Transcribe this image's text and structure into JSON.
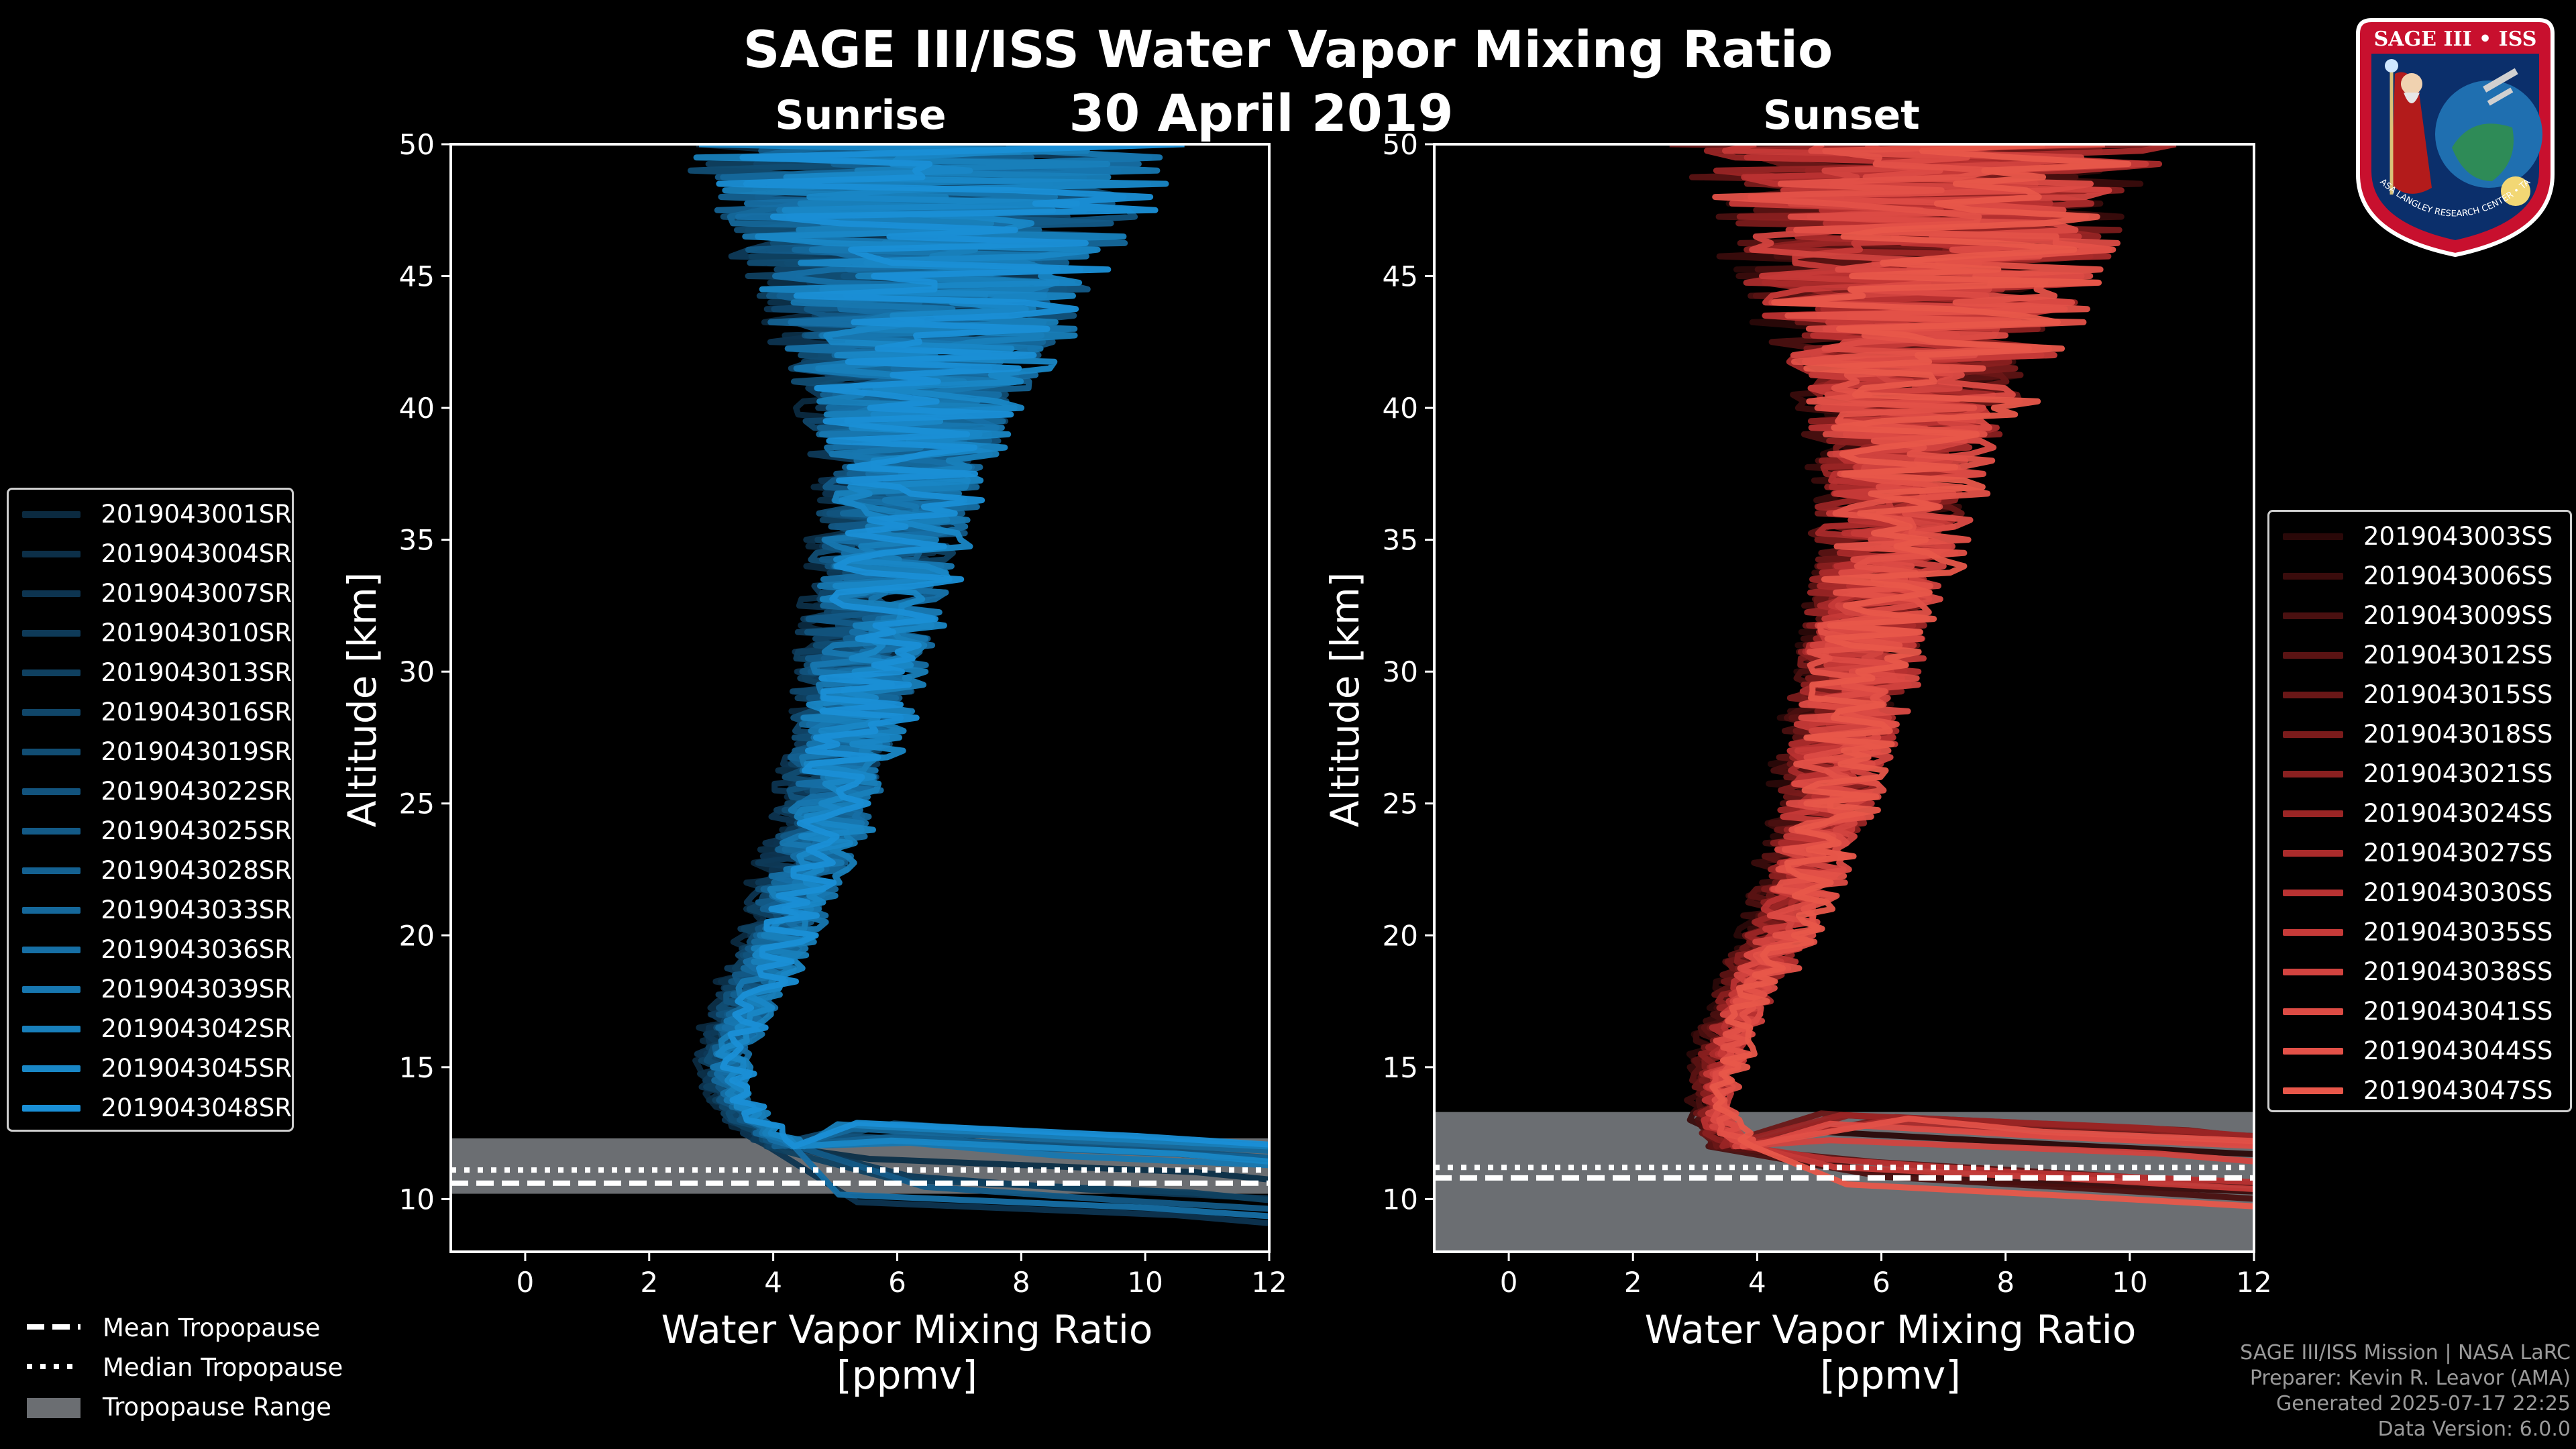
{
  "title": "SAGE III/ISS Water Vapor Mixing Ratio",
  "date": "30 April 2019",
  "colors": {
    "sunrise": "#1a8fd6",
    "sunset": "#e8574a",
    "tropopause_range": "#6b6e72"
  },
  "chart_data": [
    {
      "type": "line",
      "panel_title": "Sunrise",
      "xlabel_line1": "Water Vapor Mixing Ratio",
      "xlabel_line2": "[ppmv]",
      "ylabel": "Altitude [km]",
      "xlim": [
        -1.2,
        12
      ],
      "ylim": [
        8,
        50
      ],
      "xticks": [
        "0",
        "2",
        "4",
        "6",
        "8",
        "10",
        "12"
      ],
      "xtick_values": [
        0,
        2,
        4,
        6,
        8,
        10,
        12
      ],
      "yticks": [
        "10",
        "15",
        "20",
        "25",
        "30",
        "35",
        "40",
        "45",
        "50"
      ],
      "ytick_values": [
        10,
        15,
        20,
        25,
        30,
        35,
        40,
        45,
        50
      ],
      "series_names": [
        "2019043001SR",
        "2019043004SR",
        "2019043007SR",
        "2019043010SR",
        "2019043013SR",
        "2019043016SR",
        "2019043019SR",
        "2019043022SR",
        "2019043025SR",
        "2019043028SR",
        "2019043033SR",
        "2019043036SR",
        "2019043039SR",
        "2019043042SR",
        "2019043045SR",
        "2019043048SR"
      ],
      "series_colors": [
        "#0b2a40",
        "#0c2f48",
        "#0d3450",
        "#0e3a58",
        "#0f4060",
        "#104669",
        "#114d73",
        "#12537d",
        "#135a87",
        "#146191",
        "#15689b",
        "#166fa5",
        "#1777b0",
        "#187fbb",
        "#1987c6",
        "#1a8fd6"
      ],
      "mean_profile": {
        "alt": [
          12,
          13,
          14,
          15,
          16,
          17,
          18,
          19,
          20,
          21,
          22,
          23,
          24,
          25,
          26,
          27,
          28,
          29,
          30,
          31,
          32,
          33,
          34,
          35,
          36,
          37,
          38,
          39,
          40,
          41,
          42,
          43,
          44,
          45,
          46,
          47,
          48,
          49,
          50
        ],
        "x": [
          4.2,
          3.6,
          3.3,
          3.2,
          3.3,
          3.5,
          3.7,
          3.9,
          4.1,
          4.3,
          4.4,
          4.6,
          4.8,
          4.9,
          5.0,
          5.1,
          5.2,
          5.3,
          5.4,
          5.5,
          5.6,
          5.7,
          5.8,
          5.9,
          6.0,
          6.0,
          6.1,
          6.2,
          6.2,
          6.3,
          6.3,
          6.4,
          6.4,
          6.4,
          6.5,
          6.5,
          6.5,
          6.5,
          6.5
        ]
      },
      "mean_tropopause_km": 10.6,
      "median_tropopause_km": 11.1,
      "tropopause_range_km": [
        10.2,
        12.3
      ]
    },
    {
      "type": "line",
      "panel_title": "Sunset",
      "xlabel_line1": "Water Vapor Mixing Ratio",
      "xlabel_line2": "[ppmv]",
      "ylabel": "Altitude [km]",
      "xlim": [
        -1.2,
        12
      ],
      "ylim": [
        8,
        50
      ],
      "xticks": [
        "0",
        "2",
        "4",
        "6",
        "8",
        "10",
        "12"
      ],
      "xtick_values": [
        0,
        2,
        4,
        6,
        8,
        10,
        12
      ],
      "yticks": [
        "10",
        "15",
        "20",
        "25",
        "30",
        "35",
        "40",
        "45",
        "50"
      ],
      "ytick_values": [
        10,
        15,
        20,
        25,
        30,
        35,
        40,
        45,
        50
      ],
      "series_names": [
        "2019043003SS",
        "2019043006SS",
        "2019043009SS",
        "2019043012SS",
        "2019043015SS",
        "2019043018SS",
        "2019043021SS",
        "2019043024SS",
        "2019043027SS",
        "2019043030SS",
        "2019043035SS",
        "2019043038SS",
        "2019043041SS",
        "2019043044SS",
        "2019043047SS"
      ],
      "series_colors": [
        "#2a0808",
        "#3a0c0c",
        "#4a1010",
        "#5a1313",
        "#6a1717",
        "#7a1b1b",
        "#8a2020",
        "#9a2525",
        "#aa2b2b",
        "#b93232",
        "#c63a38",
        "#d2433f",
        "#dc4b44",
        "#e35148",
        "#e8574a"
      ],
      "mean_profile": {
        "alt": [
          12,
          13,
          14,
          15,
          16,
          17,
          18,
          19,
          20,
          21,
          22,
          23,
          24,
          25,
          26,
          27,
          28,
          29,
          30,
          31,
          32,
          33,
          34,
          35,
          36,
          37,
          38,
          39,
          40,
          41,
          42,
          43,
          44,
          45,
          46,
          47,
          48,
          49,
          50
        ],
        "x": [
          3.6,
          3.3,
          3.3,
          3.4,
          3.5,
          3.7,
          3.9,
          4.1,
          4.3,
          4.5,
          4.7,
          4.8,
          5.0,
          5.1,
          5.2,
          5.3,
          5.4,
          5.5,
          5.6,
          5.7,
          5.8,
          5.9,
          6.0,
          6.1,
          6.2,
          6.3,
          6.3,
          6.4,
          6.5,
          6.5,
          6.5,
          6.6,
          6.6,
          6.6,
          6.6,
          6.7,
          6.7,
          6.7,
          6.7
        ]
      },
      "mean_tropopause_km": 10.8,
      "median_tropopause_km": 11.2,
      "tropopause_range_km": [
        8,
        13.3
      ]
    }
  ],
  "bottom_legend": [
    {
      "label": "Mean Tropopause",
      "style": "dashed"
    },
    {
      "label": "Median Tropopause",
      "style": "dotted"
    },
    {
      "label": "Tropopause Range",
      "style": "patch"
    }
  ],
  "footer": {
    "line1": "SAGE III/ISS Mission | NASA LaRC",
    "line2": "Preparer: Kevin R. Leavor (AMA)",
    "line3": "Generated 2025-07-17 22:25",
    "line4": "Data Version: 6.0.0"
  },
  "badge": {
    "title": "SAGE III • ISS",
    "ring_text": "BALL • NASA LANGLEY RESEARCH CENTER • TAS-I • ESA"
  }
}
